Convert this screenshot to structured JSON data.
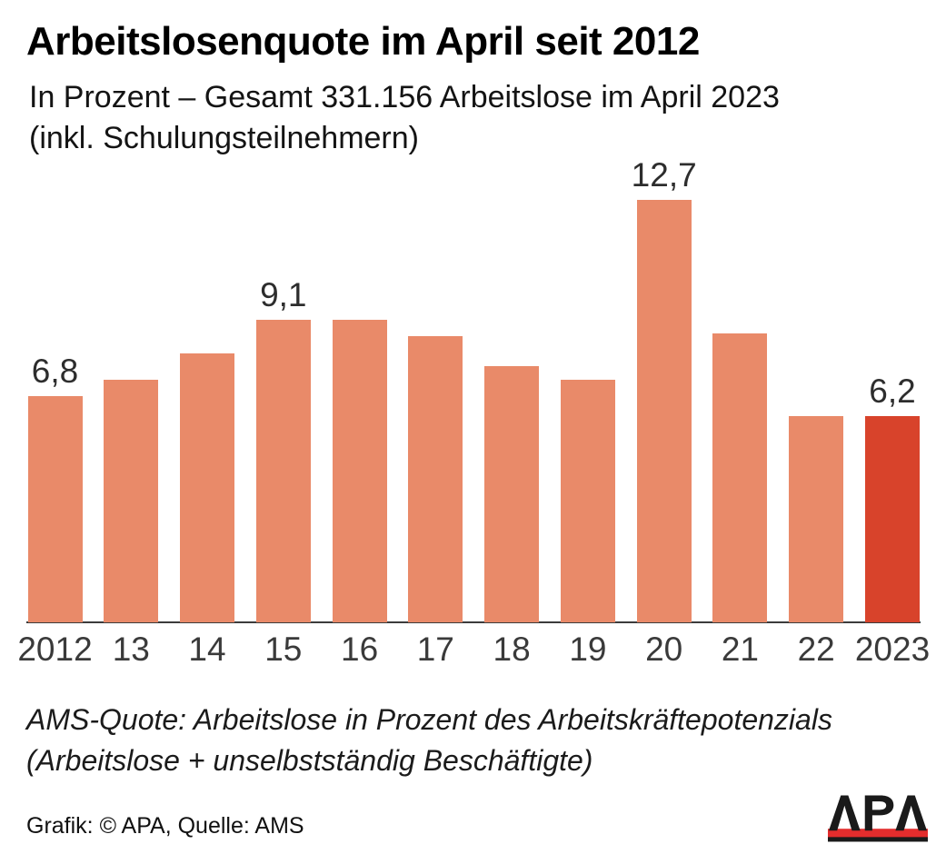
{
  "header": {
    "title": "Arbeitslosenquote im April seit 2012",
    "subtitle_lines": [
      "In Prozent – Gesamt 331.156 Arbeitslose im April 2023",
      "(inkl. Schulungsteilnehmern)"
    ]
  },
  "chart_data": {
    "type": "bar",
    "title": "Arbeitslosenquote im April seit 2012",
    "unit": "Prozent",
    "categories": [
      "2012",
      "13",
      "14",
      "15",
      "16",
      "17",
      "18",
      "19",
      "20",
      "21",
      "22",
      "2023"
    ],
    "values": [
      6.8,
      7.3,
      8.1,
      9.1,
      9.1,
      8.6,
      7.7,
      7.3,
      12.7,
      8.7,
      6.2,
      6.2
    ],
    "bar_labels": [
      "6,8",
      "",
      "",
      "9,1",
      "",
      "",
      "",
      "",
      "12,7",
      "",
      "",
      "6,2"
    ],
    "ylim": [
      0,
      14
    ],
    "grid": false,
    "legend_position": "none",
    "bar_color": "#e98a69",
    "highlight_color": "#d8432b",
    "highlight_index": 11,
    "axis_color": "#3c3c3c",
    "label_color": "#2d2d2d",
    "tick_color": "#3a3a3a"
  },
  "footnote": {
    "lines": [
      "AMS-Quote: Arbeitslose in Prozent des Arbeitskräftepotenzials",
      "(Arbeitslose + unselbstständig Beschäftigte)"
    ]
  },
  "footer": {
    "credit": "Grafik: © APA, Quelle: AMS"
  },
  "logo": {
    "text": "APA",
    "letter_color": "#1a1a1a",
    "band_color": "#e32d2d",
    "shadow_color": "#1a1a1a"
  }
}
